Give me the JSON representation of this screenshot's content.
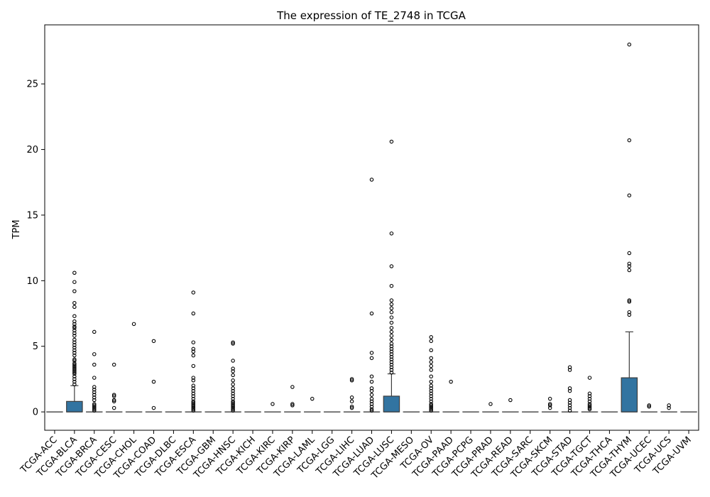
{
  "chart_data": {
    "type": "box",
    "title": "The expression of TE_2748 in TCGA",
    "xlabel": "",
    "ylabel": "TPM",
    "ylim": [
      -1.4,
      29.5
    ],
    "yticks": [
      0,
      5,
      10,
      15,
      20,
      25
    ],
    "grid": false,
    "legend": "none",
    "box_color": "#3274a1",
    "categories": [
      "TCGA-ACC",
      "TCGA-BLCA",
      "TCGA-BRCA",
      "TCGA-CESC",
      "TCGA-CHOL",
      "TCGA-COAD",
      "TCGA-DLBC",
      "TCGA-ESCA",
      "TCGA-GBM",
      "TCGA-HNSC",
      "TCGA-KICH",
      "TCGA-KIRC",
      "TCGA-KIRP",
      "TCGA-LAML",
      "TCGA-LGG",
      "TCGA-LIHC",
      "TCGA-LUAD",
      "TCGA-LUSC",
      "TCGA-MESO",
      "TCGA-OV",
      "TCGA-PAAD",
      "TCGA-PCPG",
      "TCGA-PRAD",
      "TCGA-READ",
      "TCGA-SARC",
      "TCGA-SKCM",
      "TCGA-STAD",
      "TCGA-TGCT",
      "TCGA-THCA",
      "TCGA-THYM",
      "TCGA-UCEC",
      "TCGA-UCS",
      "TCGA-UVM"
    ],
    "boxes": [
      {
        "q1": 0,
        "median": 0,
        "q3": 0,
        "whisker_low": 0,
        "whisker_high": 0,
        "outliers": []
      },
      {
        "q1": 0,
        "median": 0,
        "q3": 0.8,
        "whisker_low": 0,
        "whisker_high": 2.0,
        "outliers": [
          2.1,
          2.3,
          2.5,
          2.7,
          2.9,
          3.0,
          3.1,
          3.2,
          3.3,
          3.4,
          3.5,
          3.6,
          3.7,
          3.9,
          4.0,
          4.3,
          4.5,
          4.7,
          4.9,
          5.1,
          5.3,
          5.5,
          5.8,
          6.0,
          6.2,
          6.4,
          6.5,
          6.7,
          6.9,
          7.3,
          8.0,
          8.3,
          9.2,
          9.9,
          10.6
        ]
      },
      {
        "q1": 0,
        "median": 0,
        "q3": 0,
        "whisker_low": 0,
        "whisker_high": 0,
        "outliers": [
          0.1,
          0.2,
          0.3,
          0.4,
          0.5,
          0.6,
          0.9,
          1.1,
          1.3,
          1.5,
          1.7,
          1.9,
          2.6,
          3.6,
          4.4,
          6.1
        ]
      },
      {
        "q1": 0,
        "median": 0,
        "q3": 0,
        "whisker_low": 0,
        "whisker_high": 0,
        "outliers": [
          0.3,
          0.8,
          0.9,
          1.2,
          1.3,
          3.6
        ]
      },
      {
        "q1": 0,
        "median": 0,
        "q3": 0,
        "whisker_low": 0,
        "whisker_high": 0,
        "outliers": [
          6.7
        ]
      },
      {
        "q1": 0,
        "median": 0,
        "q3": 0,
        "whisker_low": 0,
        "whisker_high": 0,
        "outliers": [
          0.3,
          2.3,
          5.4
        ]
      },
      {
        "q1": 0,
        "median": 0,
        "q3": 0,
        "whisker_low": 0,
        "whisker_high": 0,
        "outliers": []
      },
      {
        "q1": 0,
        "median": 0,
        "q3": 0,
        "whisker_low": 0,
        "whisker_high": 0,
        "outliers": [
          0.1,
          0.2,
          0.3,
          0.4,
          0.5,
          0.6,
          0.7,
          0.8,
          1.0,
          1.2,
          1.4,
          1.6,
          1.8,
          2.0,
          2.4,
          2.6,
          3.5,
          4.3,
          4.6,
          4.8,
          5.3,
          7.5,
          9.1
        ]
      },
      {
        "q1": 0,
        "median": 0,
        "q3": 0,
        "whisker_low": 0,
        "whisker_high": 0,
        "outliers": []
      },
      {
        "q1": 0,
        "median": 0,
        "q3": 0,
        "whisker_low": 0,
        "whisker_high": 0,
        "outliers": [
          0.1,
          0.2,
          0.3,
          0.4,
          0.5,
          0.6,
          0.7,
          0.8,
          1.0,
          1.2,
          1.4,
          1.6,
          1.8,
          2.1,
          2.4,
          2.8,
          3.1,
          3.3,
          3.9,
          5.2,
          5.3
        ]
      },
      {
        "q1": 0,
        "median": 0,
        "q3": 0,
        "whisker_low": 0,
        "whisker_high": 0,
        "outliers": []
      },
      {
        "q1": 0,
        "median": 0,
        "q3": 0,
        "whisker_low": 0,
        "whisker_high": 0,
        "outliers": [
          0.6
        ]
      },
      {
        "q1": 0,
        "median": 0,
        "q3": 0,
        "whisker_low": 0,
        "whisker_high": 0,
        "outliers": [
          0.5,
          0.6,
          1.9
        ]
      },
      {
        "q1": 0,
        "median": 0,
        "q3": 0,
        "whisker_low": 0,
        "whisker_high": 0,
        "outliers": [
          1.0
        ]
      },
      {
        "q1": 0,
        "median": 0,
        "q3": 0,
        "whisker_low": 0,
        "whisker_high": 0,
        "outliers": []
      },
      {
        "q1": 0,
        "median": 0,
        "q3": 0,
        "whisker_low": 0,
        "whisker_high": 0,
        "outliers": [
          0.3,
          0.4,
          0.8,
          1.1,
          2.4,
          2.5
        ]
      },
      {
        "q1": 0,
        "median": 0,
        "q3": 0,
        "whisker_low": 0,
        "whisker_high": 0,
        "outliers": [
          0.1,
          0.2,
          0.4,
          0.6,
          0.8,
          1.0,
          1.3,
          1.6,
          1.8,
          2.3,
          2.7,
          4.1,
          4.5,
          7.5,
          17.7
        ]
      },
      {
        "q1": 0,
        "median": 0,
        "q3": 1.2,
        "whisker_low": 0,
        "whisker_high": 2.9,
        "outliers": [
          3.0,
          3.2,
          3.4,
          3.6,
          3.8,
          4.0,
          4.2,
          4.4,
          4.6,
          4.8,
          5.0,
          5.2,
          5.5,
          5.8,
          6.1,
          6.4,
          6.8,
          7.2,
          7.6,
          7.9,
          8.2,
          8.5,
          9.6,
          11.1,
          13.6,
          20.6
        ]
      },
      {
        "q1": 0,
        "median": 0,
        "q3": 0,
        "whisker_low": 0,
        "whisker_high": 0,
        "outliers": []
      },
      {
        "q1": 0,
        "median": 0,
        "q3": 0,
        "whisker_low": 0,
        "whisker_high": 0,
        "outliers": [
          0.1,
          0.2,
          0.3,
          0.4,
          0.5,
          0.6,
          0.8,
          1.0,
          1.2,
          1.4,
          1.6,
          1.8,
          2.0,
          2.3,
          2.7,
          3.2,
          3.5,
          3.8,
          4.1,
          4.7,
          5.4,
          5.7
        ]
      },
      {
        "q1": 0,
        "median": 0,
        "q3": 0,
        "whisker_low": 0,
        "whisker_high": 0,
        "outliers": [
          2.3
        ]
      },
      {
        "q1": 0,
        "median": 0,
        "q3": 0,
        "whisker_low": 0,
        "whisker_high": 0,
        "outliers": []
      },
      {
        "q1": 0,
        "median": 0,
        "q3": 0,
        "whisker_low": 0,
        "whisker_high": 0,
        "outliers": [
          0.6
        ]
      },
      {
        "q1": 0,
        "median": 0,
        "q3": 0,
        "whisker_low": 0,
        "whisker_high": 0,
        "outliers": [
          0.9
        ]
      },
      {
        "q1": 0,
        "median": 0,
        "q3": 0,
        "whisker_low": 0,
        "whisker_high": 0,
        "outliers": []
      },
      {
        "q1": 0,
        "median": 0,
        "q3": 0,
        "whisker_low": 0,
        "whisker_high": 0,
        "outliers": [
          0.3,
          0.5,
          0.6,
          1.0
        ]
      },
      {
        "q1": 0,
        "median": 0,
        "q3": 0,
        "whisker_low": 0,
        "whisker_high": 0,
        "outliers": [
          0.1,
          0.3,
          0.5,
          0.7,
          0.9,
          1.6,
          1.8,
          3.2,
          3.4
        ]
      },
      {
        "q1": 0,
        "median": 0,
        "q3": 0,
        "whisker_low": 0,
        "whisker_high": 0,
        "outliers": [
          0.2,
          0.3,
          0.4,
          0.5,
          0.6,
          0.8,
          1.0,
          1.2,
          1.4,
          2.6
        ]
      },
      {
        "q1": 0,
        "median": 0,
        "q3": 0,
        "whisker_low": 0,
        "whisker_high": 0,
        "outliers": []
      },
      {
        "q1": 0,
        "median": 0,
        "q3": 2.6,
        "whisker_low": 0,
        "whisker_high": 6.1,
        "outliers": [
          7.4,
          7.6,
          8.4,
          8.5,
          10.8,
          11.1,
          11.3,
          12.1,
          16.5,
          20.7,
          28.0
        ]
      },
      {
        "q1": 0,
        "median": 0,
        "q3": 0,
        "whisker_low": 0,
        "whisker_high": 0,
        "outliers": [
          0.4,
          0.5
        ]
      },
      {
        "q1": 0,
        "median": 0,
        "q3": 0,
        "whisker_low": 0,
        "whisker_high": 0,
        "outliers": [
          0.3,
          0.5
        ]
      },
      {
        "q1": 0,
        "median": 0,
        "q3": 0,
        "whisker_low": 0,
        "whisker_high": 0,
        "outliers": []
      }
    ]
  }
}
